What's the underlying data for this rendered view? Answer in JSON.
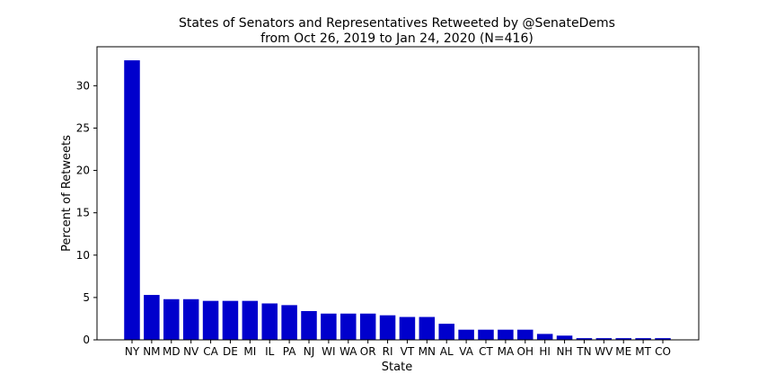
{
  "chart_data": {
    "type": "bar",
    "title_line1": "States of Senators and Representatives Retweeted by @SenateDems",
    "title_line2": "from Oct 26, 2019 to Jan 24, 2020 (N=416)",
    "xlabel": "State",
    "ylabel": "Percent of Retweets",
    "ylim": [
      0,
      34.6
    ],
    "yticks": [
      0,
      5,
      10,
      15,
      20,
      25,
      30
    ],
    "grid": false,
    "bar_color": "#0000cc",
    "categories": [
      "NY",
      "NM",
      "MD",
      "NV",
      "CA",
      "DE",
      "MI",
      "IL",
      "PA",
      "NJ",
      "WI",
      "WA",
      "OR",
      "RI",
      "VT",
      "MN",
      "AL",
      "VA",
      "CT",
      "MA",
      "OH",
      "HI",
      "NH",
      "TN",
      "WV",
      "ME",
      "MT",
      "CO"
    ],
    "values": [
      33.0,
      5.3,
      4.8,
      4.8,
      4.6,
      4.6,
      4.6,
      4.3,
      4.1,
      3.4,
      3.1,
      3.1,
      3.1,
      2.9,
      2.7,
      2.7,
      1.9,
      1.2,
      1.2,
      1.2,
      1.2,
      0.7,
      0.5,
      0.2,
      0.2,
      0.2,
      0.2,
      0.2
    ]
  }
}
